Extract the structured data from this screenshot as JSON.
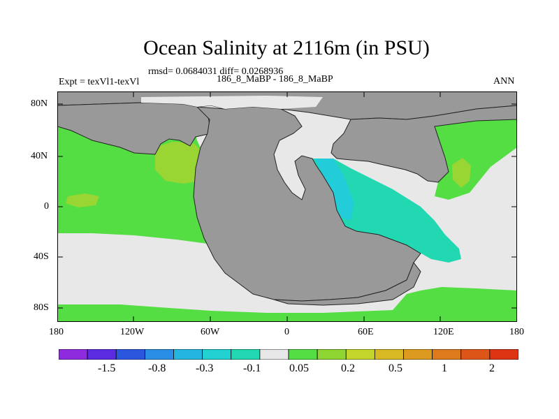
{
  "title": "Ocean Salinity at 2116m (in PSU)",
  "stats_line": "rmsd= 0.0684031 diff= 0.0268936",
  "experiment": "Expt = texVl1-texVl",
  "case_line": "186_8_MaBP - 186_8_MaBP",
  "season": "ANN",
  "y_axis_labels": [
    "80N",
    "40N",
    "0",
    "40S",
    "80S"
  ],
  "x_axis_labels": [
    "180",
    "120W",
    "60W",
    "0",
    "60E",
    "120E",
    "180"
  ],
  "colorbar": {
    "colors": [
      "#8e2bde",
      "#5a2be0",
      "#2b57de",
      "#2b8ee6",
      "#24b6e0",
      "#22d1d1",
      "#22d8b2",
      "#e8e8e8",
      "#55dd44",
      "#8fd633",
      "#c4d62b",
      "#d8b823",
      "#dc9a1f",
      "#dd7a1c",
      "#dd5618",
      "#dd3413"
    ],
    "labels": [
      "-1.5",
      "-0.8",
      "-0.3",
      "-0.1",
      "0.05",
      "0.2",
      "0.5",
      "1",
      "2"
    ]
  },
  "palette": {
    "land": "#999999",
    "near_zero": "#e8e8e8",
    "green": "#55dd44",
    "yellow_green": "#9ad633",
    "cyan": "#22d8b2",
    "light_cyan": "#22ccd8"
  }
}
